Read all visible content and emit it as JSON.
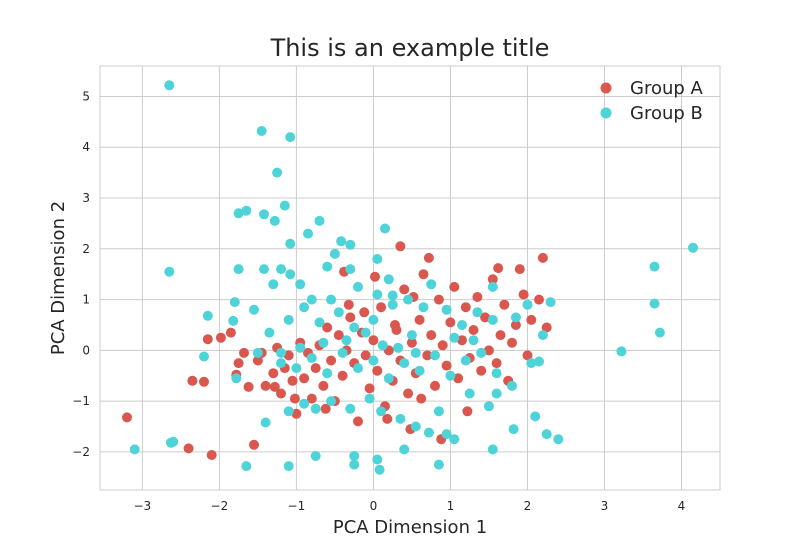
{
  "chart_data": {
    "type": "scatter",
    "title": "This is an example title",
    "xlabel": "PCA Dimension 1",
    "ylabel": "PCA Dimension 2",
    "xlim": [
      -3.55,
      4.5
    ],
    "ylim": [
      -2.75,
      5.6
    ],
    "xticks": [
      -3,
      -2,
      -1,
      0,
      1,
      2,
      3,
      4
    ],
    "yticks": [
      -2,
      -1,
      0,
      1,
      2,
      3,
      4,
      5
    ],
    "grid": true,
    "legend_position": "top-right",
    "series": [
      {
        "name": "Group A",
        "color": "#d9574e",
        "points": [
          [
            -3.2,
            -1.32
          ],
          [
            -2.4,
            -1.93
          ],
          [
            -2.1,
            -2.06
          ],
          [
            -1.55,
            -1.86
          ],
          [
            -2.35,
            -0.6
          ],
          [
            -2.2,
            -0.62
          ],
          [
            -2.15,
            0.22
          ],
          [
            -1.98,
            0.25
          ],
          [
            -1.85,
            0.35
          ],
          [
            -1.75,
            -0.25
          ],
          [
            -1.78,
            -0.48
          ],
          [
            -1.68,
            -0.05
          ],
          [
            -1.62,
            -0.72
          ],
          [
            -1.5,
            -0.2
          ],
          [
            -1.45,
            -0.05
          ],
          [
            -1.4,
            -0.7
          ],
          [
            -1.3,
            -0.45
          ],
          [
            -1.25,
            0.05
          ],
          [
            -1.2,
            -0.85
          ],
          [
            -1.15,
            -0.35
          ],
          [
            -1.1,
            -0.1
          ],
          [
            -1.05,
            -0.6
          ],
          [
            -1.0,
            -1.25
          ],
          [
            -0.95,
            0.15
          ],
          [
            -0.9,
            -0.55
          ],
          [
            -0.85,
            -0.05
          ],
          [
            -0.8,
            -0.95
          ],
          [
            -0.75,
            -0.35
          ],
          [
            -0.7,
            0.1
          ],
          [
            -0.65,
            -0.7
          ],
          [
            -0.6,
            0.45
          ],
          [
            -0.55,
            -0.2
          ],
          [
            -0.5,
            -1.0
          ],
          [
            -0.45,
            0.3
          ],
          [
            -0.4,
            -0.5
          ],
          [
            -0.35,
            0.0
          ],
          [
            -0.3,
            0.65
          ],
          [
            -0.25,
            -0.25
          ],
          [
            -0.2,
            -1.4
          ],
          [
            -0.15,
            0.35
          ],
          [
            -0.1,
            -0.1
          ],
          [
            -0.05,
            -0.75
          ],
          [
            0.0,
            0.2
          ],
          [
            0.05,
            -0.4
          ],
          [
            0.1,
            0.85
          ],
          [
            0.15,
            -1.1
          ],
          [
            0.2,
            0.0
          ],
          [
            0.25,
            -0.6
          ],
          [
            0.3,
            0.4
          ],
          [
            0.35,
            -0.2
          ],
          [
            0.4,
            1.2
          ],
          [
            0.45,
            -0.85
          ],
          [
            0.5,
            0.15
          ],
          [
            0.55,
            -0.45
          ],
          [
            0.6,
            0.6
          ],
          [
            0.65,
            1.5
          ],
          [
            0.7,
            -0.1
          ],
          [
            0.75,
            0.3
          ],
          [
            0.8,
            -0.7
          ],
          [
            0.85,
            1.0
          ],
          [
            0.9,
            0.1
          ],
          [
            0.95,
            -0.3
          ],
          [
            1.0,
            0.55
          ],
          [
            1.05,
            1.25
          ],
          [
            1.1,
            -0.55
          ],
          [
            1.15,
            0.2
          ],
          [
            1.2,
            0.85
          ],
          [
            1.25,
            -0.15
          ],
          [
            1.3,
            0.4
          ],
          [
            1.35,
            1.05
          ],
          [
            1.4,
            -0.4
          ],
          [
            1.45,
            0.65
          ],
          [
            1.5,
            0.0
          ],
          [
            1.55,
            1.4
          ],
          [
            1.6,
            -0.25
          ],
          [
            1.65,
            0.3
          ],
          [
            1.7,
            0.9
          ],
          [
            1.75,
            -0.6
          ],
          [
            1.8,
            0.15
          ],
          [
            1.85,
            0.5
          ],
          [
            1.95,
            1.1
          ],
          [
            2.0,
            -0.1
          ],
          [
            2.05,
            0.6
          ],
          [
            2.15,
            1.0
          ],
          [
            2.25,
            0.45
          ],
          [
            1.9,
            1.6
          ],
          [
            1.62,
            1.62
          ],
          [
            2.2,
            1.82
          ],
          [
            0.35,
            2.05
          ],
          [
            0.72,
            1.82
          ],
          [
            -0.38,
            1.55
          ],
          [
            0.02,
            1.45
          ],
          [
            0.18,
            -1.35
          ],
          [
            0.48,
            -1.55
          ],
          [
            0.88,
            -1.75
          ],
          [
            -0.62,
            -1.15
          ],
          [
            -1.02,
            -0.95
          ],
          [
            -1.28,
            -0.72
          ],
          [
            -0.32,
            0.9
          ],
          [
            0.28,
            0.5
          ],
          [
            0.62,
            -0.95
          ],
          [
            1.22,
            -1.2
          ],
          [
            -0.12,
            0.75
          ],
          [
            0.52,
            1.05
          ]
        ]
      },
      {
        "name": "Group B",
        "color": "#4ed3d9",
        "points": [
          [
            -2.65,
            5.22
          ],
          [
            -2.65,
            1.55
          ],
          [
            -3.1,
            -1.95
          ],
          [
            -2.6,
            -1.8
          ],
          [
            -2.63,
            -1.82
          ],
          [
            -1.45,
            4.32
          ],
          [
            -1.08,
            4.2
          ],
          [
            -1.25,
            3.5
          ],
          [
            -1.15,
            2.85
          ],
          [
            -1.65,
            2.75
          ],
          [
            -1.75,
            2.7
          ],
          [
            -1.42,
            2.68
          ],
          [
            -1.28,
            2.55
          ],
          [
            -0.7,
            2.55
          ],
          [
            -0.85,
            2.3
          ],
          [
            -1.08,
            2.1
          ],
          [
            -0.42,
            2.15
          ],
          [
            -0.3,
            2.08
          ],
          [
            0.15,
            2.4
          ],
          [
            -1.75,
            1.6
          ],
          [
            -1.42,
            1.6
          ],
          [
            -1.2,
            1.6
          ],
          [
            -1.08,
            1.5
          ],
          [
            -0.5,
            1.9
          ],
          [
            -0.6,
            1.65
          ],
          [
            -0.3,
            1.6
          ],
          [
            0.05,
            1.8
          ],
          [
            -1.3,
            1.3
          ],
          [
            -0.95,
            1.3
          ],
          [
            -0.8,
            1.0
          ],
          [
            -0.55,
            1.0
          ],
          [
            -0.2,
            1.25
          ],
          [
            0.05,
            1.1
          ],
          [
            0.2,
            1.4
          ],
          [
            -1.8,
            0.95
          ],
          [
            -1.55,
            0.8
          ],
          [
            -1.35,
            0.35
          ],
          [
            -1.1,
            0.6
          ],
          [
            -0.9,
            0.85
          ],
          [
            -0.7,
            0.55
          ],
          [
            -0.45,
            0.75
          ],
          [
            -0.25,
            0.45
          ],
          [
            0.0,
            0.6
          ],
          [
            0.25,
            0.9
          ],
          [
            0.5,
            0.3
          ],
          [
            0.75,
            1.3
          ],
          [
            0.95,
            0.8
          ],
          [
            1.15,
            0.5
          ],
          [
            1.35,
            0.75
          ],
          [
            1.55,
            1.25
          ],
          [
            1.85,
            0.65
          ],
          [
            2.0,
            0.9
          ],
          [
            2.2,
            0.3
          ],
          [
            -2.15,
            0.68
          ],
          [
            -1.82,
            0.58
          ],
          [
            -2.2,
            -0.12
          ],
          [
            -1.78,
            -0.55
          ],
          [
            -1.5,
            -0.05
          ],
          [
            -1.2,
            -0.25
          ],
          [
            -1.0,
            -0.35
          ],
          [
            -0.8,
            -0.15
          ],
          [
            -0.6,
            -0.45
          ],
          [
            -0.4,
            -0.05
          ],
          [
            -0.2,
            -0.35
          ],
          [
            0.0,
            -0.2
          ],
          [
            0.2,
            -0.55
          ],
          [
            0.4,
            -0.25
          ],
          [
            0.6,
            -0.4
          ],
          [
            0.8,
            -0.1
          ],
          [
            1.0,
            -0.5
          ],
          [
            1.2,
            -0.2
          ],
          [
            1.4,
            -0.05
          ],
          [
            1.6,
            -0.45
          ],
          [
            1.8,
            -0.7
          ],
          [
            2.05,
            -0.25
          ],
          [
            2.15,
            -0.22
          ],
          [
            -1.4,
            -1.42
          ],
          [
            -1.1,
            -1.2
          ],
          [
            -0.9,
            -1.05
          ],
          [
            -0.75,
            -1.15
          ],
          [
            -0.55,
            -1.0
          ],
          [
            -0.3,
            -1.15
          ],
          [
            -0.05,
            -0.95
          ],
          [
            0.1,
            -1.2
          ],
          [
            0.35,
            -1.35
          ],
          [
            0.55,
            -1.5
          ],
          [
            0.72,
            -1.62
          ],
          [
            0.85,
            -1.2
          ],
          [
            1.05,
            -1.75
          ],
          [
            1.25,
            -0.85
          ],
          [
            1.5,
            -1.1
          ],
          [
            1.6,
            -0.85
          ],
          [
            1.82,
            -1.55
          ],
          [
            2.1,
            -1.3
          ],
          [
            2.25,
            -1.65
          ],
          [
            2.4,
            -1.75
          ],
          [
            1.55,
            -1.95
          ],
          [
            -1.65,
            -2.28
          ],
          [
            -1.1,
            -2.28
          ],
          [
            -0.75,
            -2.08
          ],
          [
            -0.25,
            -2.08
          ],
          [
            0.05,
            -2.15
          ],
          [
            0.08,
            -2.35
          ],
          [
            -0.25,
            -2.25
          ],
          [
            0.4,
            -1.95
          ],
          [
            0.85,
            -2.25
          ],
          [
            0.95,
            -1.65
          ],
          [
            3.22,
            -0.02
          ],
          [
            3.65,
            1.65
          ],
          [
            3.65,
            0.92
          ],
          [
            3.72,
            0.35
          ],
          [
            4.15,
            2.02
          ],
          [
            0.25,
            1.08
          ],
          [
            0.45,
            1.0
          ],
          [
            0.65,
            0.85
          ],
          [
            -0.35,
            0.2
          ],
          [
            -0.1,
            0.35
          ],
          [
            0.12,
            0.1
          ],
          [
            0.32,
            0.05
          ],
          [
            0.55,
            -0.05
          ],
          [
            -0.65,
            0.15
          ],
          [
            -0.95,
            0.05
          ],
          [
            -1.2,
            -0.05
          ],
          [
            1.05,
            0.25
          ],
          [
            1.3,
            0.2
          ],
          [
            1.55,
            0.6
          ],
          [
            2.3,
            0.95
          ]
        ]
      }
    ]
  }
}
